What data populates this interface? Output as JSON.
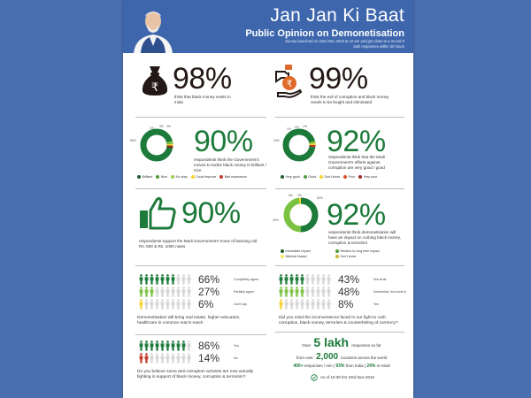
{
  "header": {
    "title": "Jan Jan Ki Baat",
    "subtitle": "Public Opinion on Demonetisation",
    "note": "Survey launched on 22nd Nov 2016 at 10 am and got close to a record 5 lakh responses within 30 hours"
  },
  "stat_black_money": {
    "value": "98%",
    "text": "think that black money exists in India",
    "icon": "money-bag-rupee-icon"
  },
  "stat_corruption": {
    "value": "99%",
    "text": "think the evil of corruption and black money needs to be fought and eliminated",
    "icon": "hand-rupee-bag-icon"
  },
  "colors": {
    "background": "#4a6fae",
    "header": "#3d66ad",
    "dark_green": "#1c7a3a",
    "light_green": "#7cc242",
    "yellow": "#f4d531",
    "orange": "#e98a1e",
    "red": "#c0392b",
    "dark_red": "#8b2a1e",
    "people_grey": "#d6d6d6"
  },
  "moves": {
    "value": "90%",
    "text": "respondents think the Government's moves to tackle black money is brilliant / nice",
    "labels": [
      "56%",
      "1%",
      "3%",
      "2%"
    ],
    "legend": [
      "Brilliant",
      "Nice",
      "It's okay",
      "Could improve",
      "Bad experience"
    ]
  },
  "efforts": {
    "value": "92%",
    "text": "respondents think that the Modi Government's efforts against corruption are very good / good",
    "labels": [
      "34%",
      "1%",
      "2%",
      "1%"
    ],
    "legend": [
      "Very good",
      "Good",
      "Don't know",
      "Poor",
      "Very poor"
    ]
  },
  "support": {
    "value": "90%",
    "text": "respondents support the Modi Government's move of banning old Rs. 500 & Rs. 1000 notes",
    "icon": "thumbs-up-icon"
  },
  "impact": {
    "value": "92%",
    "text": "respondents think demonetisation will have an impact on curbing black money, corruption & terrorism",
    "labels": [
      "42%",
      "6%",
      "2%",
      "50%"
    ],
    "legend": [
      "Immediate Impact",
      "Medium to long term impact",
      "Minimal Impact",
      "Don't know"
    ]
  },
  "chart_data": [
    {
      "type": "pie",
      "title": "Government's moves to tackle black money",
      "categories": [
        "Brilliant",
        "Nice",
        "It's okay",
        "Could improve",
        "Bad experience"
      ],
      "values": [
        56,
        34,
        3,
        2,
        1
      ],
      "headline": "90%"
    },
    {
      "type": "pie",
      "title": "Modi Government's efforts against corruption",
      "categories": [
        "Very good",
        "Good",
        "Don't know",
        "Poor",
        "Very poor"
      ],
      "values": [
        58,
        34,
        2,
        1,
        1
      ],
      "headline": "92%"
    },
    {
      "type": "pie",
      "title": "Impact of demonetisation on curbing black money, corruption & terrorism",
      "categories": [
        "Immediate Impact",
        "Medium to long term impact",
        "Minimal Impact",
        "Don't know"
      ],
      "values": [
        50,
        42,
        6,
        2
      ],
      "headline": "92%"
    },
    {
      "type": "bar",
      "title": "Demonetisation will bring real estate, higher education, healthcare in common man's reach",
      "categories": [
        "Completely agree",
        "Partially agree",
        "Can't say"
      ],
      "values": [
        66,
        27,
        6
      ]
    },
    {
      "type": "bar",
      "title": "Did you mind the inconvenience faced in our fight to curb corruption, black money, terrorism & counterfeiting of currency?",
      "categories": [
        "Not at all",
        "Somewhat, but worth it",
        "Yes"
      ],
      "values": [
        43,
        48,
        8
      ]
    },
    {
      "type": "bar",
      "title": "Do you believe some anti-corruption activists are now actually fighting in support of black money, corruption & terrorism?",
      "categories": [
        "Yes",
        "No"
      ],
      "values": [
        86,
        14
      ]
    }
  ],
  "real_estate": {
    "question": "Demonetisation will bring real estate, higher education, healthcare in common man's reach",
    "rows": [
      {
        "pct": "66%",
        "label": "Completely agree",
        "filled": 7,
        "color": "#1c7a3a"
      },
      {
        "pct": "27%",
        "label": "Partially agree",
        "filled": 3,
        "color": "#7cc242"
      },
      {
        "pct": "6%",
        "label": "Can't say",
        "filled": 1,
        "color": "#f4d531"
      }
    ]
  },
  "inconvenience": {
    "question": "Did you mind the inconvenience faced in our fight to curb corruption, black money, terrorism & counterfeiting of currency?",
    "rows": [
      {
        "pct": "43%",
        "label": "Not at all",
        "filled": 5,
        "color": "#1c7a3a"
      },
      {
        "pct": "48%",
        "label": "Somewhat, but worth it",
        "filled": 5,
        "color": "#7cc242"
      },
      {
        "pct": "8%",
        "label": "Yes",
        "filled": 1,
        "color": "#f4d531"
      }
    ]
  },
  "activists": {
    "question": "Do you believe some anti-corruption activists are now actually fighting in support of black money, corruption & terrorism?",
    "rows": [
      {
        "pct": "86%",
        "label": "Yes",
        "filled": 9,
        "color": "#1c7a3a"
      },
      {
        "pct": "14%",
        "label": "No",
        "filled": 2,
        "color": "#c0392b"
      }
    ]
  },
  "summary": {
    "line1_pre": "Over",
    "line1_big": "5 lakh",
    "line1_post": "responses so far",
    "line2_pre": "from over",
    "line2_big": "2,000",
    "line2_post": "locations across the world",
    "line3_a": "400+",
    "line3_b": "responses / min |",
    "line3_c": "93%",
    "line3_d": "from India |",
    "line3_e": "24%",
    "line3_f": "in Hindi",
    "timestamp": "As of 15:30 hrs 23rd Nov 2016"
  }
}
